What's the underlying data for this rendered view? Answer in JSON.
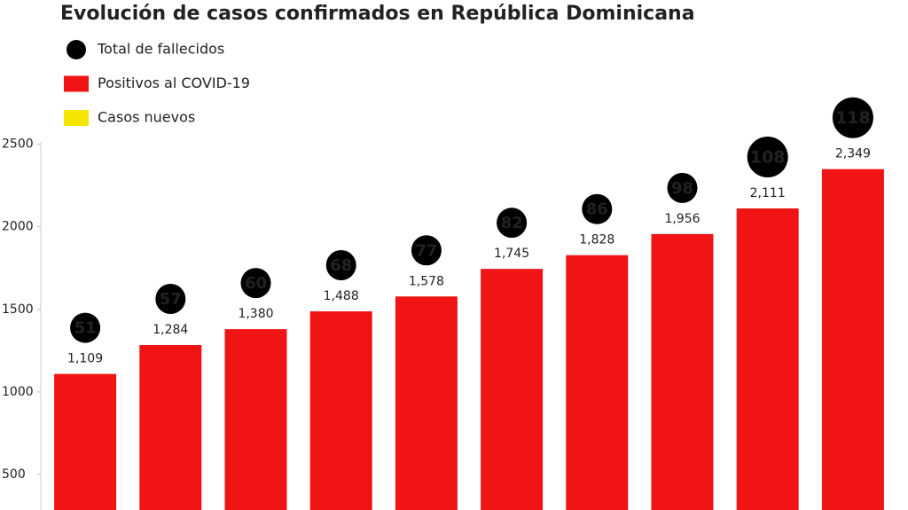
{
  "chart_data": {
    "type": "bar",
    "title": "Evolución de casos confirmados en República Dominicana",
    "categories": [
      null,
      null,
      null,
      null,
      null,
      null,
      null,
      null,
      null,
      null
    ],
    "series": [
      {
        "name": "Total de fallecidos",
        "color": "#000000",
        "marker": "circle",
        "values": [
          51,
          57,
          60,
          68,
          77,
          82,
          86,
          98,
          108,
          118
        ]
      },
      {
        "name": "Positivos al COVID-19",
        "color": "#f01414",
        "values": [
          1109,
          1284,
          1380,
          1488,
          1578,
          1745,
          1828,
          1956,
          2111,
          2349
        ],
        "value_labels": [
          "1,109",
          "1,284",
          "1,380",
          "1,488",
          "1,578",
          "1,745",
          "1,828",
          "1,956",
          "2,111",
          "2,349"
        ]
      },
      {
        "name": "Casos nuevos",
        "color": "#f5e600",
        "values": [
          null,
          null,
          null,
          null,
          null,
          null,
          null,
          null,
          null,
          null
        ]
      }
    ],
    "ylim": [
      285,
      2530
    ],
    "yticks": [
      500,
      1000,
      1500,
      2000,
      2500
    ],
    "grid": false
  }
}
